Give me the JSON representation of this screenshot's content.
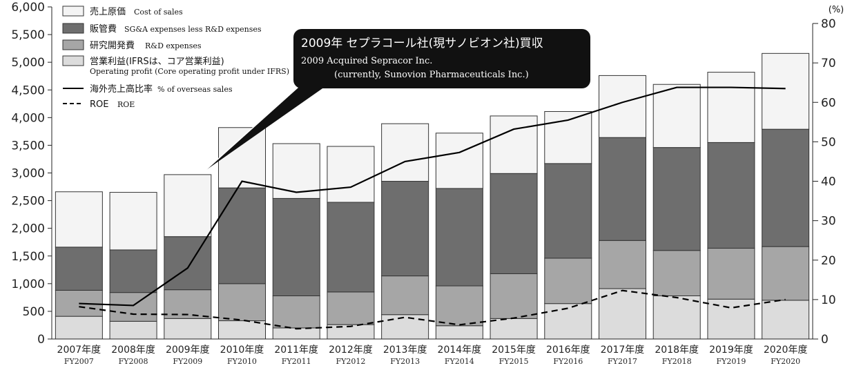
{
  "chart_data": {
    "type": "bar",
    "stacked": true,
    "categories_jp": [
      "2007年度",
      "2008年度",
      "2009年度",
      "2010年度",
      "2011年度",
      "2012年度",
      "2013年度",
      "2014年度",
      "2015年度",
      "2016年度",
      "2017年度",
      "2018年度",
      "2019年度",
      "2020年度"
    ],
    "categories_en": [
      "FY2007",
      "FY2008",
      "FY2009",
      "FY2010",
      "FY2011",
      "FY2012",
      "FY2013",
      "FY2014",
      "FY2015",
      "FY2016",
      "FY2017",
      "FY2018",
      "FY2019",
      "FY2020"
    ],
    "y_left": {
      "ylim": [
        0,
        6000
      ],
      "ticks": [
        "0",
        "500",
        "1,000",
        "1,500",
        "2,000",
        "2,500",
        "3,000",
        "3,500",
        "4,000",
        "4,500",
        "5,000",
        "5,500",
        "6,000"
      ],
      "tick_values": [
        0,
        500,
        1000,
        1500,
        2000,
        2500,
        3000,
        3500,
        4000,
        4500,
        5000,
        5500,
        6000
      ]
    },
    "y_right": {
      "ylim": [
        0,
        80
      ],
      "unit": "(%)",
      "ticks": [
        "0",
        "10",
        "20",
        "30",
        "40",
        "50",
        "60",
        "70",
        "80"
      ],
      "tick_values": [
        0,
        10,
        20,
        30,
        40,
        50,
        60,
        70,
        80
      ]
    },
    "series": [
      {
        "key": "op",
        "name_jp": "営業利益(IFRSは、コア営業利益)",
        "name_en": "Operating profit (Core operating profit under IFRS)",
        "color": "#dcdcdc",
        "values": [
          410,
          320,
          370,
          330,
          200,
          260,
          440,
          240,
          370,
          640,
          910,
          780,
          720,
          700
        ]
      },
      {
        "key": "rd",
        "name_jp": "研究開発費",
        "name_en": "R&D expenses",
        "color": "#a6a6a6",
        "values": [
          470,
          520,
          520,
          670,
          580,
          590,
          700,
          720,
          810,
          820,
          870,
          820,
          920,
          970
        ]
      },
      {
        "key": "sga",
        "name_jp": "販管費",
        "name_en": "SG&A expenses less R&D expenses",
        "color": "#6e6e6e",
        "values": [
          780,
          770,
          960,
          1730,
          1760,
          1620,
          1710,
          1760,
          1810,
          1710,
          1860,
          1860,
          1910,
          2120
        ]
      },
      {
        "key": "cos",
        "name_jp": "売上原価",
        "name_en": "Cost of sales",
        "color": "#f4f4f4",
        "values": [
          1000,
          1040,
          1120,
          1090,
          990,
          1010,
          1040,
          1000,
          1040,
          940,
          1120,
          1140,
          1270,
          1370
        ]
      }
    ],
    "lines": [
      {
        "key": "overseas",
        "name_jp": "海外売上高比率",
        "name_en": "% of overseas sales",
        "style": "solid",
        "values": [
          9,
          8.5,
          18,
          40,
          37.2,
          38.5,
          45,
          47.3,
          53.2,
          55.5,
          60,
          63.8,
          63.8,
          63.5
        ]
      },
      {
        "key": "roe",
        "name_jp": "ROE",
        "name_en": "ROE",
        "style": "dashed",
        "values": [
          8.2,
          6.3,
          6.2,
          4.8,
          2.6,
          3.2,
          5.5,
          3.6,
          5.3,
          7.8,
          12.3,
          10.5,
          7.9,
          10
        ]
      }
    ],
    "legend_position": "top-left",
    "annotation": {
      "jp": "2009年 セプラコール社(現サノビオン社)買収",
      "en_line1": "2009 Acquired Sepracor Inc.",
      "en_line2": "(currently, Sunovion Pharmaceuticals Inc.)",
      "points_to": "FY2009"
    }
  }
}
